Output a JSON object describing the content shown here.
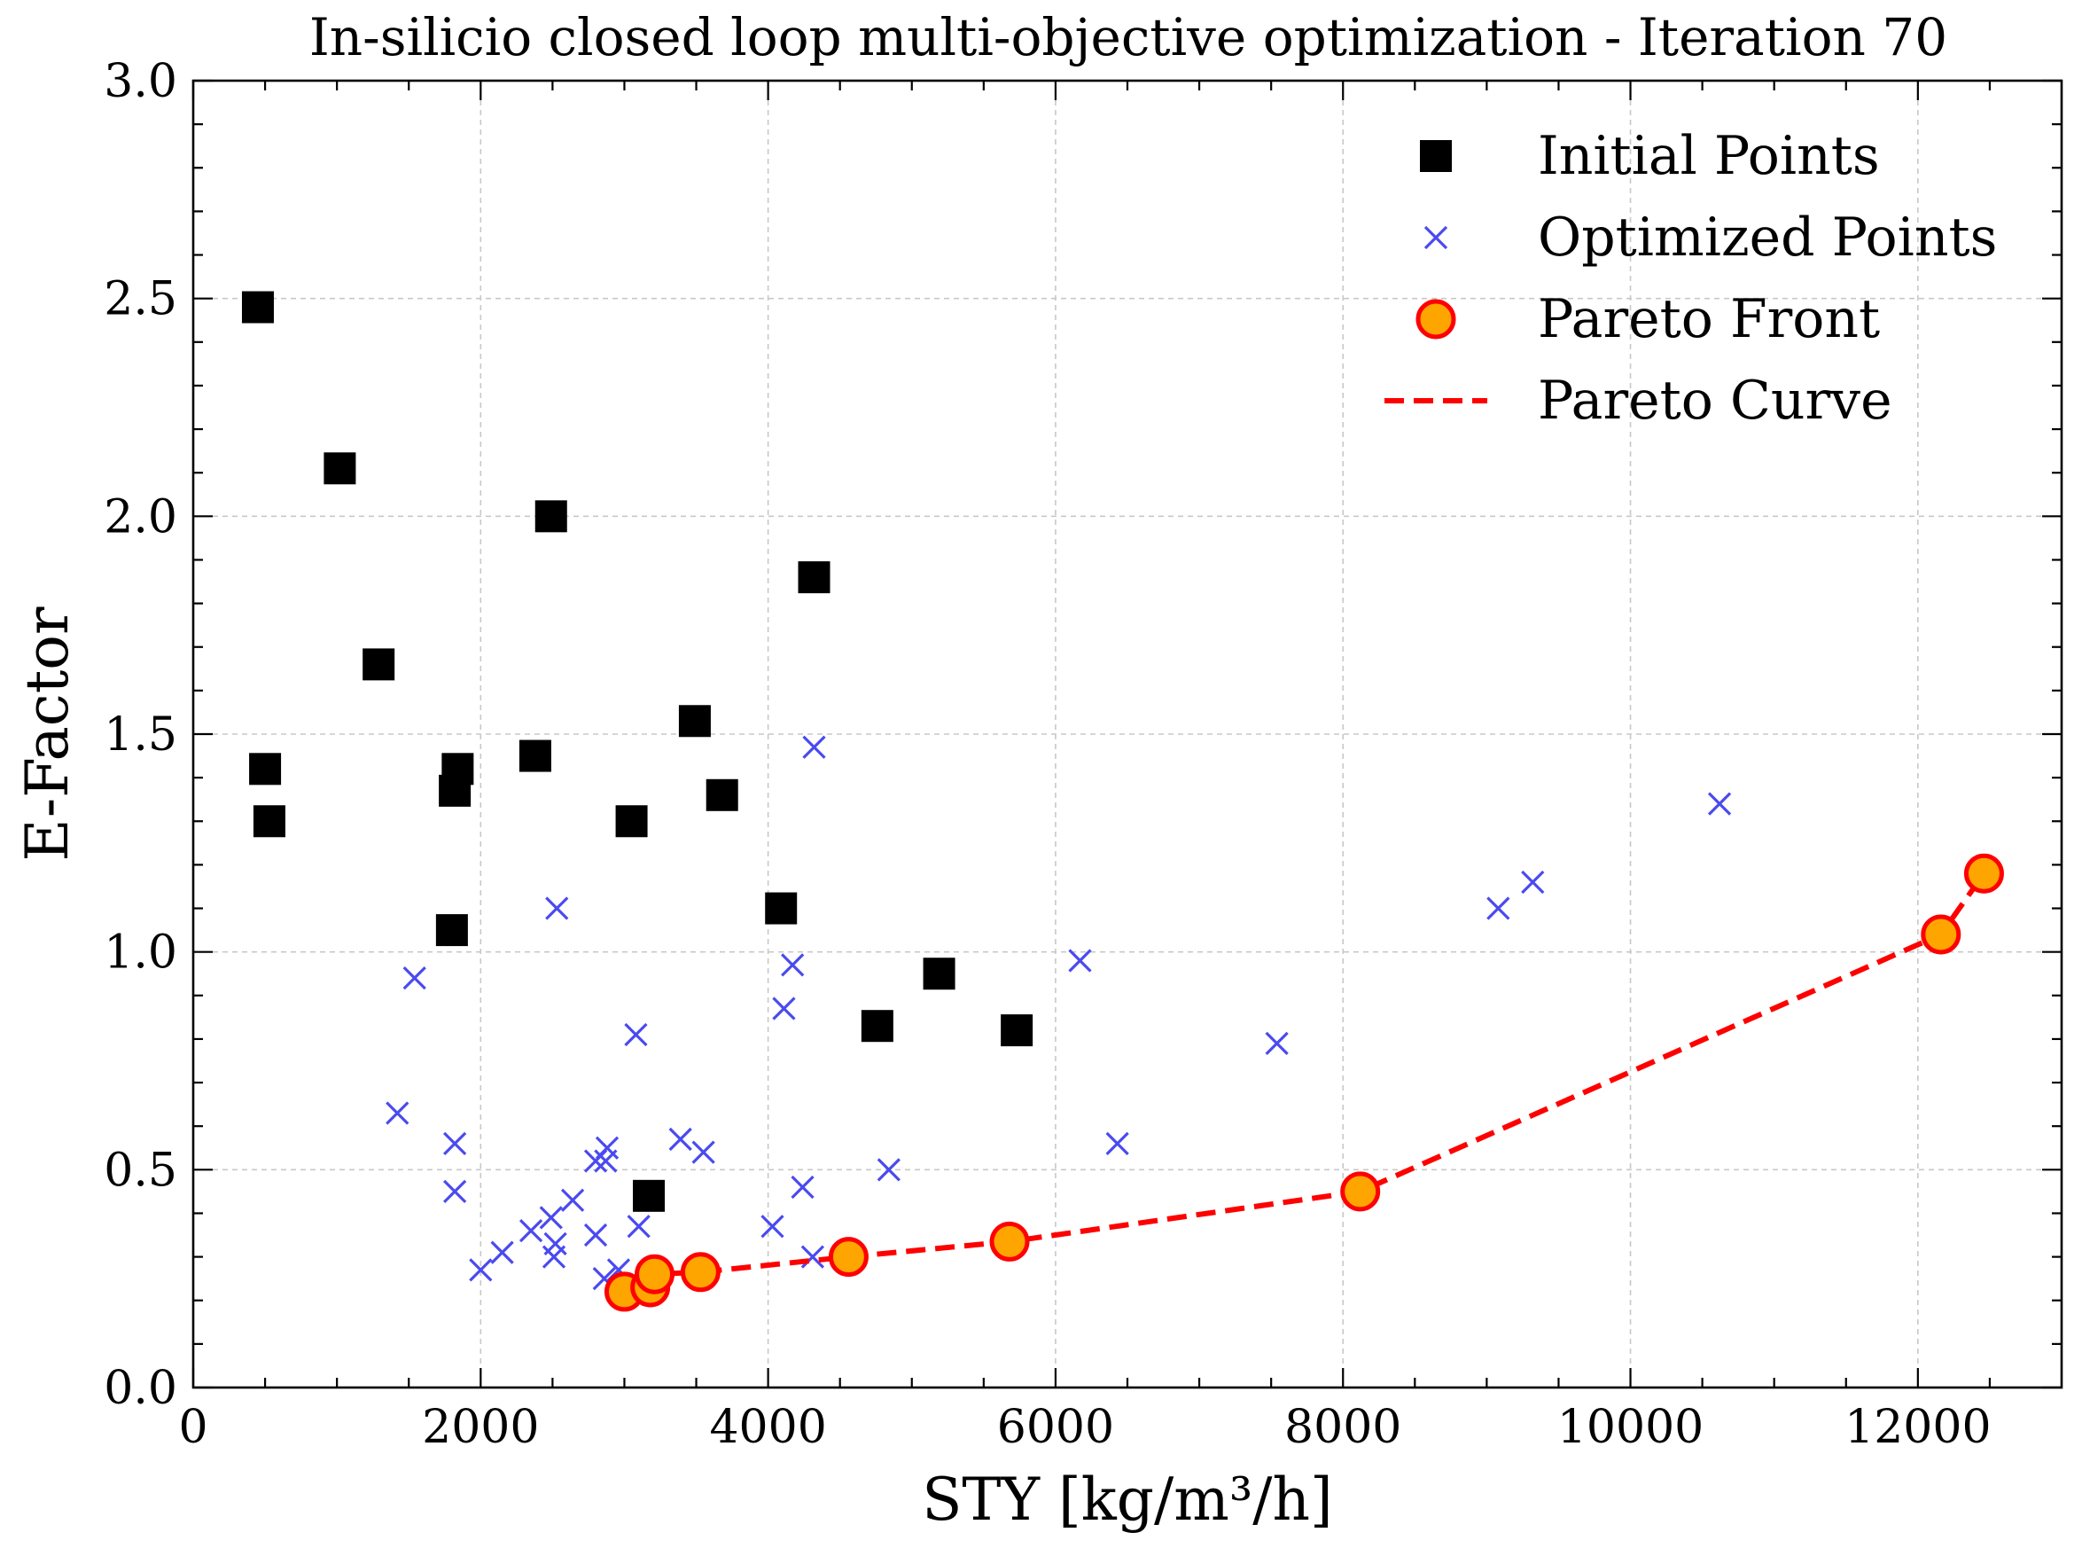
{
  "chart_data": {
    "type": "scatter",
    "title": "In-silicio closed loop multi-objective optimization - Iteration 70",
    "xlabel": "STY [kg/m³/h]",
    "ylabel": "E-Factor",
    "xlim": [
      0,
      13000
    ],
    "ylim": [
      0.0,
      3.0
    ],
    "x_ticks": [
      0,
      2000,
      4000,
      6000,
      8000,
      10000,
      12000
    ],
    "y_ticks": [
      0.0,
      0.5,
      1.0,
      1.5,
      2.0,
      2.5,
      3.0
    ],
    "x_tick_labels": [
      "0",
      "2000",
      "4000",
      "6000",
      "8000",
      "10000",
      "12000"
    ],
    "y_tick_labels": [
      "0.0",
      "0.5",
      "1.0",
      "1.5",
      "2.0",
      "2.5",
      "3.0"
    ],
    "grid": true,
    "legend_position": "top-right",
    "colors": {
      "initial": "#000000",
      "optimized": "#4a4af0",
      "pareto_fill": "#ffa500",
      "pareto_edge": "#ff0000",
      "pareto_curve": "#ff0000"
    },
    "series": [
      {
        "name": "Initial Points",
        "marker": "square",
        "points": [
          [
            450,
            2.48
          ],
          [
            1020,
            2.11
          ],
          [
            2490,
            2.0
          ],
          [
            4320,
            1.86
          ],
          [
            1290,
            1.66
          ],
          [
            3490,
            1.53
          ],
          [
            500,
            1.42
          ],
          [
            1840,
            1.42
          ],
          [
            2380,
            1.45
          ],
          [
            1820,
            1.37
          ],
          [
            3680,
            1.36
          ],
          [
            530,
            1.3
          ],
          [
            3050,
            1.3
          ],
          [
            4090,
            1.1
          ],
          [
            1800,
            1.05
          ],
          [
            5190,
            0.95
          ],
          [
            4760,
            0.83
          ],
          [
            5730,
            0.82
          ],
          [
            3170,
            0.44
          ]
        ]
      },
      {
        "name": "Optimized Points",
        "marker": "x",
        "points": [
          [
            4320,
            1.47
          ],
          [
            10620,
            1.34
          ],
          [
            9320,
            1.16
          ],
          [
            9080,
            1.1
          ],
          [
            2530,
            1.1
          ],
          [
            6170,
            0.98
          ],
          [
            4170,
            0.97
          ],
          [
            1540,
            0.94
          ],
          [
            4110,
            0.87
          ],
          [
            3080,
            0.81
          ],
          [
            7540,
            0.79
          ],
          [
            1420,
            0.63
          ],
          [
            1820,
            0.56
          ],
          [
            3390,
            0.57
          ],
          [
            6430,
            0.56
          ],
          [
            2880,
            0.55
          ],
          [
            3550,
            0.54
          ],
          [
            2800,
            0.52
          ],
          [
            2870,
            0.52
          ],
          [
            4840,
            0.5
          ],
          [
            1820,
            0.45
          ],
          [
            4240,
            0.46
          ],
          [
            2640,
            0.43
          ],
          [
            2490,
            0.39
          ],
          [
            2350,
            0.36
          ],
          [
            2520,
            0.33
          ],
          [
            2800,
            0.35
          ],
          [
            3100,
            0.37
          ],
          [
            4030,
            0.37
          ],
          [
            2150,
            0.31
          ],
          [
            2510,
            0.3
          ],
          [
            4310,
            0.3
          ],
          [
            2000,
            0.27
          ],
          [
            2960,
            0.27
          ],
          [
            2860,
            0.25
          ],
          [
            3190,
            0.24
          ],
          [
            2990,
            0.22
          ]
        ]
      },
      {
        "name": "Pareto Front",
        "marker": "circle",
        "points": [
          [
            3000,
            0.22
          ],
          [
            3180,
            0.23
          ],
          [
            3210,
            0.26
          ],
          [
            3530,
            0.265
          ],
          [
            4560,
            0.3
          ],
          [
            5680,
            0.335
          ],
          [
            8120,
            0.45
          ],
          [
            12160,
            1.04
          ],
          [
            12460,
            1.18
          ]
        ]
      },
      {
        "name": "Pareto Curve",
        "marker": "dashed-line",
        "points": [
          [
            3000,
            0.22
          ],
          [
            3180,
            0.23
          ],
          [
            3210,
            0.26
          ],
          [
            3530,
            0.265
          ],
          [
            4560,
            0.3
          ],
          [
            5680,
            0.335
          ],
          [
            8120,
            0.45
          ],
          [
            12160,
            1.04
          ],
          [
            12460,
            1.18
          ]
        ]
      }
    ]
  }
}
